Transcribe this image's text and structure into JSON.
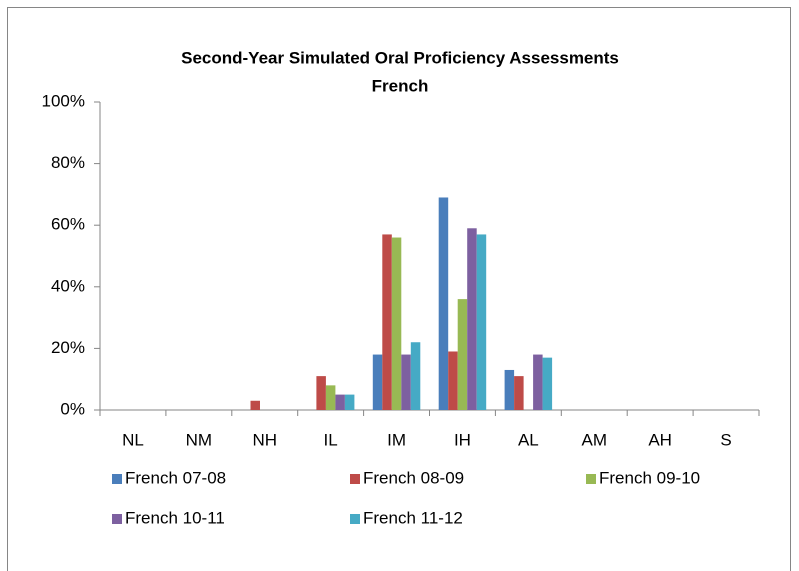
{
  "chart_data": {
    "type": "bar",
    "title": "Second-Year Simulated Oral Proficiency Assessments",
    "subtitle": "French",
    "categories": [
      "NL",
      "NM",
      "NH",
      "IL",
      "IM",
      "IH",
      "AL",
      "AM",
      "AH",
      "S"
    ],
    "series": [
      {
        "name": "French 07-08",
        "color": "#4a7ebb",
        "values": [
          0,
          0,
          0,
          0,
          18,
          69,
          13,
          0,
          0,
          0
        ]
      },
      {
        "name": "French 08-09",
        "color": "#be4b48",
        "values": [
          0,
          0,
          3,
          11,
          57,
          19,
          11,
          0,
          0,
          0
        ]
      },
      {
        "name": "French 09-10",
        "color": "#98b954",
        "values": [
          0,
          0,
          0,
          8,
          56,
          36,
          0,
          0,
          0,
          0
        ]
      },
      {
        "name": "French 10-11",
        "color": "#7d60a0",
        "values": [
          0,
          0,
          0,
          5,
          18,
          59,
          18,
          0,
          0,
          0
        ]
      },
      {
        "name": "French 11-12",
        "color": "#46aac5",
        "values": [
          0,
          0,
          0,
          5,
          22,
          57,
          17,
          0,
          0,
          0
        ]
      }
    ],
    "ylim": [
      0,
      100
    ],
    "yticks": [
      {
        "value": 0,
        "label": "0%"
      },
      {
        "value": 20,
        "label": "20%"
      },
      {
        "value": 40,
        "label": "40%"
      },
      {
        "value": 60,
        "label": "60%"
      },
      {
        "value": 80,
        "label": "80%"
      },
      {
        "value": 100,
        "label": "100%"
      }
    ],
    "grid": false,
    "legend": "bottom"
  }
}
